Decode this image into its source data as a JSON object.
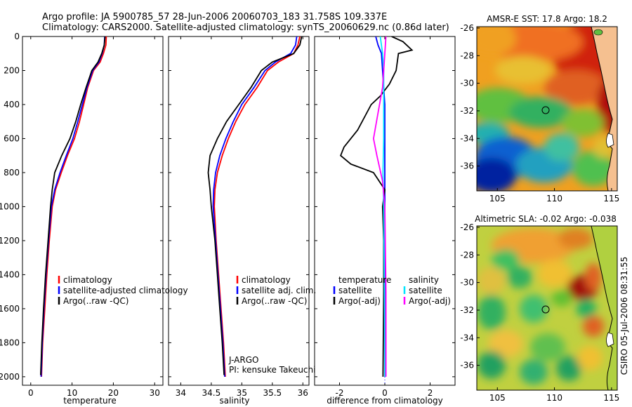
{
  "header": {
    "line1": "Argo profile: JA 5900785_57 28-Jun-2006 20060703_183 31.758S 109.337E",
    "line2": "Climatology: CARS2000. Satellite-adjusted climatology: synTS_20060629.nc (0.86d later)"
  },
  "footer_stamp": "CSIRO 05-Jul-2006 08:31:55",
  "colors": {
    "climatology": "#ff0000",
    "satellite": "#0000ff",
    "argo": "#000000",
    "salinity_satellite": "#00e5ff",
    "salinity_argo": "#ff00ff"
  },
  "chart_data": [
    {
      "type": "line",
      "xlabel": "temperature",
      "ylabel": "",
      "xlim": [
        -2,
        32
      ],
      "ylim": [
        2050,
        0
      ],
      "y_reversed": true,
      "xticks": [
        0,
        10,
        20,
        30
      ],
      "yticks": [
        0,
        200,
        400,
        600,
        800,
        1000,
        1200,
        1400,
        1600,
        1800,
        2000
      ],
      "legend": [
        "climatology",
        "satellite-adjusted climatology",
        "Argo(..raw -QC)"
      ],
      "series": [
        {
          "name": "climatology",
          "color": "#ff0000",
          "points": [
            [
              18.3,
              0
            ],
            [
              18.2,
              50
            ],
            [
              17.6,
              100
            ],
            [
              16.8,
              150
            ],
            [
              15.2,
              200
            ],
            [
              13.8,
              300
            ],
            [
              12.8,
              400
            ],
            [
              11.8,
              500
            ],
            [
              10.6,
              600
            ],
            [
              8.9,
              700
            ],
            [
              7.4,
              800
            ],
            [
              6.0,
              900
            ],
            [
              5.2,
              1000
            ],
            [
              4.5,
              1200
            ],
            [
              3.9,
              1400
            ],
            [
              3.4,
              1600
            ],
            [
              2.9,
              1800
            ],
            [
              2.6,
              2000
            ]
          ]
        },
        {
          "name": "satellite-adjusted climatology",
          "color": "#0000ff",
          "points": [
            [
              17.9,
              0
            ],
            [
              17.8,
              50
            ],
            [
              17.3,
              100
            ],
            [
              16.5,
              150
            ],
            [
              15.0,
              200
            ],
            [
              13.6,
              300
            ],
            [
              12.5,
              400
            ],
            [
              11.4,
              500
            ],
            [
              10.2,
              600
            ],
            [
              8.6,
              700
            ],
            [
              7.1,
              800
            ],
            [
              5.8,
              900
            ],
            [
              5.0,
              1000
            ],
            [
              4.3,
              1200
            ],
            [
              3.7,
              1400
            ],
            [
              3.2,
              1600
            ],
            [
              2.8,
              1800
            ],
            [
              2.5,
              2000
            ]
          ]
        },
        {
          "name": "Argo(..raw -QC)",
          "color": "#000000",
          "points": [
            [
              18.0,
              0
            ],
            [
              17.8,
              50
            ],
            [
              17.2,
              100
            ],
            [
              16.3,
              150
            ],
            [
              14.8,
              200
            ],
            [
              13.4,
              300
            ],
            [
              12.1,
              400
            ],
            [
              10.9,
              500
            ],
            [
              9.5,
              600
            ],
            [
              7.5,
              700
            ],
            [
              5.8,
              800
            ],
            [
              5.2,
              900
            ],
            [
              4.8,
              1000
            ],
            [
              4.2,
              1200
            ],
            [
              3.6,
              1400
            ],
            [
              3.1,
              1600
            ],
            [
              2.7,
              1800
            ],
            [
              2.4,
              1990
            ]
          ]
        }
      ]
    },
    {
      "type": "line",
      "xlabel": "salinity",
      "ylabel": "",
      "xlim": [
        33.8,
        36.1
      ],
      "ylim": [
        2050,
        0
      ],
      "y_reversed": true,
      "xticks": [
        34,
        34.5,
        35,
        35.5,
        36
      ],
      "legend": [
        "climatology",
        "satellite adj. clim.",
        "Argo(..raw -QC)"
      ],
      "annotations": [
        "J-ARGO",
        "PI: kensuke Takeuchi"
      ],
      "series": [
        {
          "name": "climatology",
          "color": "#ff0000",
          "points": [
            [
              35.95,
              0
            ],
            [
              35.92,
              50
            ],
            [
              35.85,
              100
            ],
            [
              35.6,
              150
            ],
            [
              35.42,
              200
            ],
            [
              35.25,
              300
            ],
            [
              35.05,
              400
            ],
            [
              34.9,
              500
            ],
            [
              34.78,
              600
            ],
            [
              34.68,
              700
            ],
            [
              34.6,
              800
            ],
            [
              34.56,
              900
            ],
            [
              34.55,
              1000
            ],
            [
              34.58,
              1200
            ],
            [
              34.62,
              1400
            ],
            [
              34.66,
              1600
            ],
            [
              34.7,
              1800
            ],
            [
              34.73,
              2000
            ]
          ]
        },
        {
          "name": "satellite adj. clim.",
          "color": "#0000ff",
          "points": [
            [
              35.9,
              0
            ],
            [
              35.88,
              50
            ],
            [
              35.8,
              100
            ],
            [
              35.55,
              150
            ],
            [
              35.38,
              200
            ],
            [
              35.2,
              300
            ],
            [
              35.0,
              400
            ],
            [
              34.86,
              500
            ],
            [
              34.74,
              600
            ],
            [
              34.64,
              700
            ],
            [
              34.57,
              800
            ],
            [
              34.54,
              900
            ],
            [
              34.53,
              1000
            ],
            [
              34.57,
              1200
            ],
            [
              34.61,
              1400
            ],
            [
              34.65,
              1600
            ],
            [
              34.69,
              1800
            ],
            [
              34.72,
              2000
            ]
          ]
        },
        {
          "name": "Argo(..raw -QC)",
          "color": "#000000",
          "points": [
            [
              35.98,
              0
            ],
            [
              35.95,
              50
            ],
            [
              35.85,
              100
            ],
            [
              35.5,
              150
            ],
            [
              35.32,
              200
            ],
            [
              35.15,
              300
            ],
            [
              34.95,
              400
            ],
            [
              34.75,
              500
            ],
            [
              34.6,
              600
            ],
            [
              34.48,
              700
            ],
            [
              34.45,
              800
            ],
            [
              34.48,
              900
            ],
            [
              34.5,
              1000
            ],
            [
              34.56,
              1200
            ],
            [
              34.6,
              1400
            ],
            [
              34.64,
              1600
            ],
            [
              34.68,
              1800
            ],
            [
              34.71,
              1990
            ]
          ]
        }
      ]
    },
    {
      "type": "line",
      "xlabel": "difference from climatology",
      "ylabel": "",
      "xlim": [
        -3.1,
        3.1
      ],
      "ylim": [
        2050,
        0
      ],
      "y_reversed": true,
      "xticks": [
        -2,
        0,
        2
      ],
      "legend_temperature_title": "temperature",
      "legend_salinity_title": "salinity",
      "legend": [
        "satellite",
        "Argo(-adj)",
        "satellite",
        "Argo(-adj)"
      ],
      "series": [
        {
          "name": "satellite",
          "group": "temperature",
          "color": "#0000ff",
          "points": [
            [
              -0.4,
              0
            ],
            [
              -0.3,
              50
            ],
            [
              -0.15,
              100
            ],
            [
              -0.1,
              200
            ],
            [
              -0.05,
              300
            ],
            [
              0,
              400
            ],
            [
              0,
              600
            ],
            [
              0,
              800
            ],
            [
              0,
              1000
            ],
            [
              0,
              1500
            ],
            [
              0,
              2000
            ]
          ]
        },
        {
          "name": "Argo(-adj)",
          "group": "temperature",
          "color": "#000000",
          "points": [
            [
              0.3,
              0
            ],
            [
              0.8,
              30
            ],
            [
              1.2,
              80
            ],
            [
              0.6,
              100
            ],
            [
              0.5,
              200
            ],
            [
              0.2,
              280
            ],
            [
              -0.2,
              350
            ],
            [
              -0.6,
              400
            ],
            [
              -1.2,
              550
            ],
            [
              -1.8,
              650
            ],
            [
              -1.95,
              700
            ],
            [
              -1.5,
              750
            ],
            [
              -0.5,
              800
            ],
            [
              0.0,
              900
            ],
            [
              -0.1,
              1000
            ],
            [
              -0.05,
              1200
            ],
            [
              -0.05,
              1500
            ],
            [
              -0.08,
              2000
            ]
          ]
        },
        {
          "name": "satellite",
          "group": "salinity",
          "color": "#00e5ff",
          "points": [
            [
              -0.2,
              0
            ],
            [
              -0.1,
              100
            ],
            [
              -0.05,
              200
            ],
            [
              -0.05,
              400
            ],
            [
              -0.05,
              600
            ],
            [
              -0.08,
              800
            ],
            [
              -0.05,
              1000
            ],
            [
              -0.02,
              1500
            ],
            [
              0,
              2000
            ]
          ]
        },
        {
          "name": "Argo(-adj)",
          "group": "salinity",
          "color": "#ff00ff",
          "points": [
            [
              0.05,
              0
            ],
            [
              0.0,
              100
            ],
            [
              -0.05,
              200
            ],
            [
              -0.1,
              300
            ],
            [
              -0.3,
              450
            ],
            [
              -0.5,
              600
            ],
            [
              -0.35,
              700
            ],
            [
              -0.1,
              850
            ],
            [
              0.0,
              1000
            ],
            [
              0.05,
              1500
            ],
            [
              0.05,
              2000
            ]
          ]
        }
      ]
    }
  ],
  "maps": [
    {
      "title": "AMSR-E SST: 17.8 Argo: 18.2",
      "xticks": [
        "105",
        "110",
        "115"
      ],
      "yticks": [
        "-26",
        "-28",
        "-30",
        "-32",
        "-34",
        "-36"
      ]
    },
    {
      "title": "Altimetric SLA: -0.02 Argo: -0.038",
      "xticks": [
        "105",
        "110",
        "115"
      ],
      "yticks": [
        "-26",
        "-28",
        "-30",
        "-32",
        "-34",
        "-36"
      ]
    }
  ]
}
